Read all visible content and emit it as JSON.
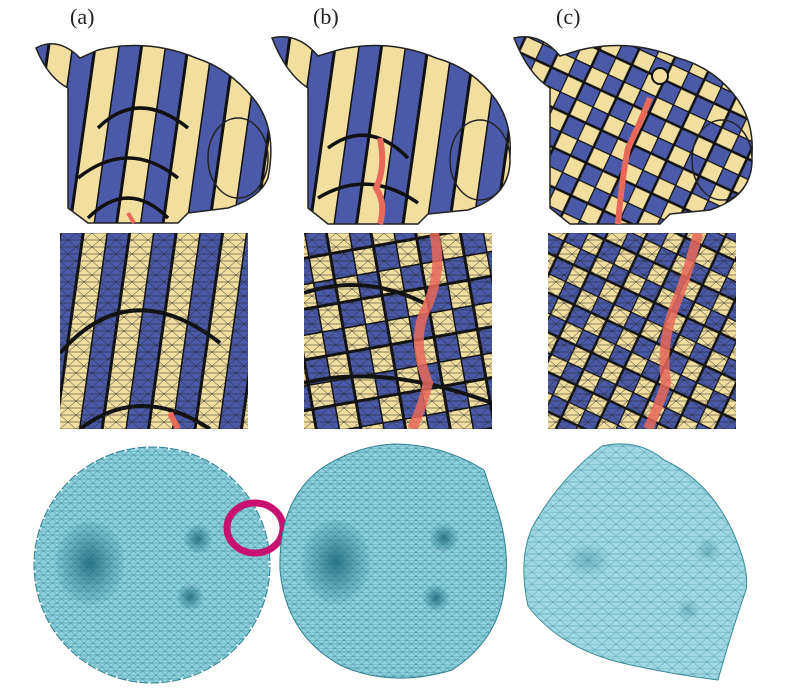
{
  "figure": {
    "labels": [
      "(a)",
      "(b)",
      "(c)"
    ]
  },
  "colors": {
    "checker_blue": "#4a5aa8",
    "checker_cream": "#f2dfa0",
    "seam_red": "#e8685a",
    "mesh_teal": "#8fd1dc",
    "mesh_line": "#2e7f90",
    "highlight_ring": "#c8106e"
  }
}
